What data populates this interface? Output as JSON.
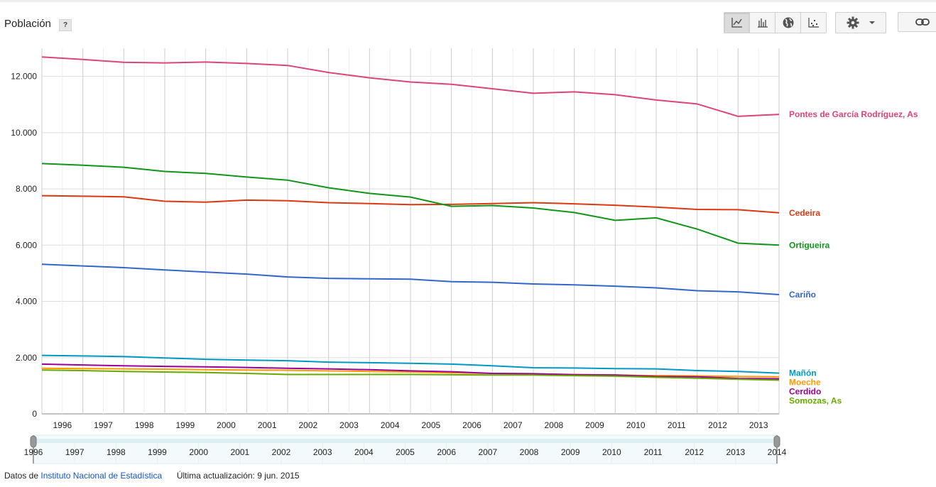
{
  "header": {
    "title": "Población",
    "help_label": "?"
  },
  "toolbar": {
    "views": [
      {
        "name": "line-chart-view",
        "icon": "line-chart-icon",
        "active": true
      },
      {
        "name": "bar-chart-view",
        "icon": "bar-chart-icon",
        "active": false
      },
      {
        "name": "map-view",
        "icon": "globe-icon",
        "active": false
      },
      {
        "name": "scatter-view",
        "icon": "scatter-icon",
        "active": false
      }
    ],
    "settings_icon": "gear-icon",
    "dropdown_icon": "caret-down-icon",
    "link_icon": "link-icon"
  },
  "footer": {
    "prefix": "Datos de",
    "source": "Instituto Nacional de Estadística",
    "updated": "Última actualización: 9 jun. 2015"
  },
  "chart_data": {
    "type": "line",
    "title": "Población",
    "x": [
      1996,
      1997,
      1998,
      1999,
      2000,
      2001,
      2002,
      2003,
      2004,
      2005,
      2006,
      2007,
      2008,
      2009,
      2010,
      2011,
      2012,
      2013,
      2014
    ],
    "xticks": [
      "1996",
      "1997",
      "1998",
      "1999",
      "2000",
      "2001",
      "2002",
      "2003",
      "2004",
      "2005",
      "2006",
      "2007",
      "2008",
      "2009",
      "2010",
      "2011",
      "2012",
      "2013"
    ],
    "range_ticks": [
      "1996",
      "1997",
      "1998",
      "1999",
      "2000",
      "2001",
      "2002",
      "2003",
      "2004",
      "2005",
      "2006",
      "2007",
      "2008",
      "2009",
      "2010",
      "2011",
      "2012",
      "2013",
      "2014"
    ],
    "ylim": [
      0,
      13000
    ],
    "yticks": [
      0,
      2000,
      4000,
      6000,
      8000,
      10000,
      12000
    ],
    "ytick_labels": [
      "0",
      "2.000",
      "4.000",
      "6.000",
      "8.000",
      "10.000",
      "12.000"
    ],
    "grid": true,
    "series": [
      {
        "name": "Pontes de García Rodríguez, As",
        "color": "#dd4477",
        "values": [
          12690,
          12600,
          12500,
          12480,
          12510,
          12460,
          12390,
          12140,
          11950,
          11800,
          11720,
          11560,
          11400,
          11450,
          11350,
          11160,
          11020,
          10580,
          10650
        ]
      },
      {
        "name": "Cedeira",
        "color": "#dc3912",
        "values": [
          7760,
          7740,
          7720,
          7560,
          7530,
          7600,
          7580,
          7510,
          7480,
          7440,
          7450,
          7480,
          7510,
          7470,
          7420,
          7350,
          7270,
          7260,
          7150
        ]
      },
      {
        "name": "Ortigueira",
        "color": "#109618",
        "values": [
          8900,
          8840,
          8770,
          8620,
          8550,
          8420,
          8310,
          8040,
          7840,
          7710,
          7380,
          7410,
          7320,
          7160,
          6880,
          6970,
          6570,
          6070,
          6000
        ]
      },
      {
        "name": "Cariño",
        "color": "#3366cc",
        "values": [
          5320,
          5260,
          5200,
          5120,
          5040,
          4970,
          4870,
          4820,
          4800,
          4790,
          4700,
          4680,
          4620,
          4590,
          4540,
          4480,
          4380,
          4340,
          4240
        ]
      },
      {
        "name": "Mañón",
        "color": "#0099c6",
        "values": [
          2080,
          2060,
          2040,
          1990,
          1940,
          1910,
          1890,
          1840,
          1820,
          1800,
          1770,
          1710,
          1640,
          1630,
          1610,
          1600,
          1540,
          1510,
          1450
        ]
      },
      {
        "name": "Moeche",
        "color": "#ff9900",
        "values": [
          1620,
          1610,
          1600,
          1590,
          1570,
          1560,
          1550,
          1530,
          1510,
          1490,
          1460,
          1440,
          1420,
          1400,
          1380,
          1360,
          1350,
          1330,
          1320
        ]
      },
      {
        "name": "Cerdido",
        "color": "#990099",
        "values": [
          1770,
          1740,
          1710,
          1690,
          1670,
          1650,
          1620,
          1600,
          1570,
          1530,
          1500,
          1440,
          1430,
          1390,
          1380,
          1330,
          1320,
          1260,
          1250
        ]
      },
      {
        "name": "Somozas, As",
        "color": "#66aa00",
        "values": [
          1560,
          1540,
          1510,
          1490,
          1470,
          1440,
          1400,
          1400,
          1400,
          1400,
          1390,
          1380,
          1380,
          1360,
          1340,
          1300,
          1270,
          1230,
          1200
        ]
      }
    ]
  }
}
